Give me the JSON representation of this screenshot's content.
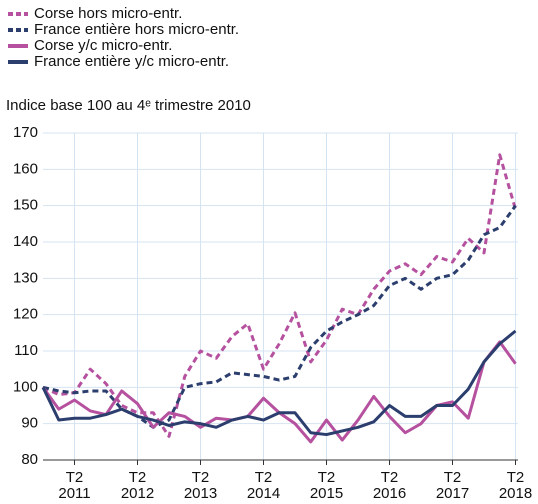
{
  "chart_data": {
    "type": "line",
    "subtitle": "Indice base 100 au 4ᵉ trimestre 2010",
    "categories": [
      null,
      null,
      "T2 2011",
      null,
      null,
      null,
      "T2 2012",
      null,
      null,
      null,
      "T2 2013",
      null,
      null,
      null,
      "T2 2014",
      null,
      null,
      null,
      "T2 2015",
      null,
      null,
      null,
      "T2 2016",
      null,
      null,
      null,
      "T2 2017",
      null,
      null,
      null,
      "T2 2018"
    ],
    "series": [
      {
        "name": "Corse hors micro-entr.",
        "color": "#b5519f",
        "dashed": true,
        "values": [
          100,
          98,
          98.5,
          105,
          101,
          95,
          93,
          93,
          86.5,
          103,
          110,
          108,
          114,
          117.5,
          105,
          112,
          120.5,
          107,
          113,
          121.5,
          120,
          127,
          132,
          134,
          131,
          136,
          134.5,
          141,
          137,
          164,
          149
        ]
      },
      {
        "name": "France entière hors micro-entr.",
        "color": "#2b3e6e",
        "dashed": true,
        "values": [
          100,
          99,
          98.5,
          99,
          99,
          94,
          92,
          89,
          91,
          100,
          101,
          101.5,
          104,
          103.5,
          103,
          102,
          103,
          111,
          115.5,
          118,
          120,
          122.5,
          128,
          130,
          127,
          130,
          131,
          135,
          142,
          144,
          150
        ]
      },
      {
        "name": "Corse y/c micro-entr.",
        "color": "#b5519f",
        "dashed": false,
        "values": [
          100,
          94,
          96.5,
          93.5,
          92.5,
          99,
          95.5,
          89,
          93,
          92,
          89,
          91.5,
          91,
          92,
          97,
          93,
          90,
          85,
          91,
          85.5,
          91,
          97.5,
          92,
          87.5,
          90,
          95,
          96,
          91.5,
          107,
          112.5,
          106.5
        ]
      },
      {
        "name": "France entière y/c micro-entr.",
        "color": "#2b3e6e",
        "dashed": false,
        "values": [
          100,
          91,
          91.5,
          91.5,
          92.5,
          94,
          92,
          91,
          89.5,
          90.5,
          90,
          89,
          91,
          92,
          91,
          93,
          93,
          87.5,
          87,
          88,
          89,
          90.5,
          95,
          92,
          92,
          95,
          95,
          99.5,
          107,
          112,
          115.5
        ]
      }
    ],
    "ylim": [
      80,
      170
    ],
    "yticks": [
      80,
      90,
      100,
      110,
      120,
      130,
      140,
      150,
      160,
      170
    ],
    "grid": true
  }
}
